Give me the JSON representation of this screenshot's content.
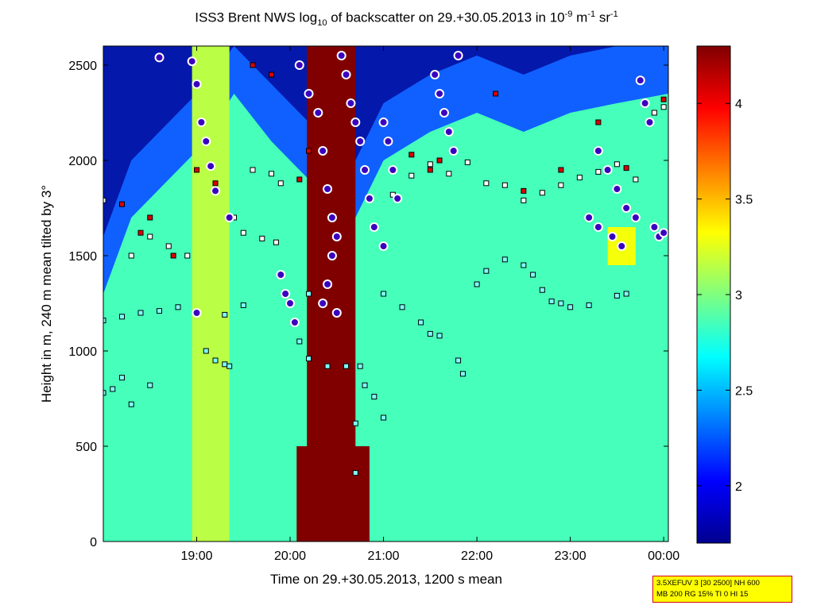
{
  "title": {
    "prefix": "ISS3 Brent NWS log",
    "sub": "10",
    "middle": " of backscatter on 29.+30.05.2013 in 10",
    "exp1": "-9",
    "unit_m": " m",
    "exp2": "-1",
    "unit_sr": " sr",
    "exp3": "-1"
  },
  "info_box": {
    "line1": "3.5XEFUV 3 [30 2500] NH 600",
    "line2": "MB 200 RG 15% TI 0 HI 15"
  },
  "chart_data": {
    "type": "heatmap",
    "xlabel": "Time on 29.+30.05.2013, 1200 s mean",
    "ylabel": "Height in m, 240 m mean tilted by 3°",
    "x_range_hours": [
      18.0,
      24.05
    ],
    "x_ticks": [
      {
        "hour": 19,
        "label": "19:00"
      },
      {
        "hour": 20,
        "label": "20:00"
      },
      {
        "hour": 21,
        "label": "21:00"
      },
      {
        "hour": 22,
        "label": "22:00"
      },
      {
        "hour": 23,
        "label": "23:00"
      },
      {
        "hour": 24,
        "label": "00:00"
      }
    ],
    "ylim": [
      0,
      2600
    ],
    "y_ticks": [
      0,
      500,
      1000,
      1500,
      2000,
      2500
    ],
    "colorbar": {
      "range": [
        1.7,
        4.3
      ],
      "ticks": [
        2,
        2.5,
        3,
        3.5,
        4
      ],
      "colormap": "jet"
    },
    "background_value": 2.85,
    "bands": [
      {
        "x0": 18.95,
        "x1": 19.35,
        "y0": 0,
        "y1": 2600,
        "value": 3.15
      },
      {
        "x0": 20.18,
        "x1": 20.7,
        "y0": 0,
        "y1": 2600,
        "value": 4.3
      },
      {
        "x0": 20.07,
        "x1": 20.85,
        "y0": 0,
        "y1": 500,
        "value": 4.3
      },
      {
        "x0": 23.4,
        "x1": 23.7,
        "y0": 1450,
        "y1": 1650,
        "value": 3.3
      }
    ],
    "top_layer": [
      {
        "x": 18.0,
        "top": 1300
      },
      {
        "x": 18.3,
        "top": 1700
      },
      {
        "x": 18.6,
        "top": 1850
      },
      {
        "x": 19.0,
        "top": 2050
      },
      {
        "x": 19.4,
        "top": 2350
      },
      {
        "x": 19.8,
        "top": 2100
      },
      {
        "x": 20.2,
        "top": 1900
      },
      {
        "x": 20.7,
        "top": 1700
      },
      {
        "x": 21.0,
        "top": 2000
      },
      {
        "x": 21.5,
        "top": 2150
      },
      {
        "x": 22.0,
        "top": 2250
      },
      {
        "x": 22.5,
        "top": 2150
      },
      {
        "x": 23.0,
        "top": 2250
      },
      {
        "x": 23.5,
        "top": 2300
      },
      {
        "x": 24.05,
        "top": 2350
      }
    ],
    "point_series": [
      {
        "name": "layer-low",
        "color": "#7fffff",
        "points": [
          [
            18.0,
            780
          ],
          [
            18.1,
            800
          ],
          [
            18.2,
            860
          ],
          [
            18.3,
            720
          ],
          [
            18.5,
            820
          ],
          [
            19.1,
            1000
          ],
          [
            19.2,
            950
          ],
          [
            19.3,
            930
          ],
          [
            19.35,
            920
          ],
          [
            20.1,
            1050
          ],
          [
            20.2,
            960
          ],
          [
            20.4,
            920
          ],
          [
            20.6,
            920
          ],
          [
            20.75,
            920
          ],
          [
            20.8,
            820
          ],
          [
            20.9,
            760
          ],
          [
            21.0,
            650
          ],
          [
            20.7,
            620
          ],
          [
            20.7,
            360
          ]
        ]
      },
      {
        "name": "layer-mid",
        "color": "#7fffff",
        "points": [
          [
            18.0,
            1160
          ],
          [
            18.2,
            1180
          ],
          [
            18.4,
            1200
          ],
          [
            18.6,
            1210
          ],
          [
            18.8,
            1230
          ],
          [
            19.0,
            1200
          ],
          [
            19.3,
            1190
          ],
          [
            19.5,
            1240
          ],
          [
            20.2,
            1300
          ],
          [
            21.0,
            1300
          ],
          [
            21.2,
            1230
          ],
          [
            21.4,
            1150
          ],
          [
            21.5,
            1090
          ],
          [
            21.6,
            1080
          ],
          [
            21.8,
            950
          ],
          [
            21.85,
            880
          ],
          [
            22.0,
            1350
          ],
          [
            22.1,
            1420
          ],
          [
            22.3,
            1480
          ],
          [
            22.5,
            1450
          ],
          [
            22.6,
            1400
          ],
          [
            22.7,
            1320
          ],
          [
            22.8,
            1260
          ],
          [
            22.9,
            1250
          ],
          [
            23.0,
            1230
          ],
          [
            23.2,
            1240
          ],
          [
            23.5,
            1290
          ],
          [
            23.6,
            1300
          ]
        ]
      },
      {
        "name": "layer-high",
        "color": "#ffffff",
        "points": [
          [
            18.0,
            1790
          ],
          [
            18.3,
            1500
          ],
          [
            18.5,
            1600
          ],
          [
            18.7,
            1550
          ],
          [
            18.9,
            1500
          ],
          [
            19.4,
            1700
          ],
          [
            19.5,
            1620
          ],
          [
            19.7,
            1590
          ],
          [
            19.85,
            1570
          ],
          [
            19.6,
            1950
          ],
          [
            19.8,
            1930
          ],
          [
            19.9,
            1880
          ],
          [
            21.1,
            1820
          ],
          [
            21.3,
            1920
          ],
          [
            21.5,
            1980
          ],
          [
            21.7,
            1930
          ],
          [
            21.9,
            1990
          ],
          [
            22.1,
            1880
          ],
          [
            22.3,
            1870
          ],
          [
            22.5,
            1790
          ],
          [
            22.7,
            1830
          ],
          [
            22.9,
            1870
          ],
          [
            23.1,
            1910
          ],
          [
            23.3,
            1940
          ],
          [
            23.5,
            1980
          ],
          [
            23.7,
            1900
          ],
          [
            23.9,
            2250
          ],
          [
            24.0,
            2280
          ]
        ]
      },
      {
        "name": "layer-red",
        "color": "#dd0000",
        "points": [
          [
            18.4,
            1620
          ],
          [
            18.5,
            1700
          ],
          [
            18.75,
            1500
          ],
          [
            19.0,
            1950
          ],
          [
            19.2,
            1880
          ],
          [
            19.6,
            2500
          ],
          [
            19.8,
            2450
          ],
          [
            20.1,
            1900
          ],
          [
            20.2,
            2050
          ],
          [
            21.0,
            2200
          ],
          [
            21.3,
            2030
          ],
          [
            21.5,
            1950
          ],
          [
            21.6,
            2000
          ],
          [
            22.2,
            2350
          ],
          [
            22.5,
            1840
          ],
          [
            22.9,
            1950
          ],
          [
            23.3,
            2200
          ],
          [
            23.6,
            1960
          ],
          [
            24.0,
            2320
          ],
          [
            18.2,
            1770
          ]
        ]
      },
      {
        "name": "circles",
        "color": "#dd0000",
        "points": [
          [
            18.6,
            2540
          ],
          [
            18.95,
            2520
          ],
          [
            19.0,
            2400
          ],
          [
            19.05,
            2200
          ],
          [
            19.1,
            2100
          ],
          [
            19.15,
            1970
          ],
          [
            19.2,
            1840
          ],
          [
            19.35,
            1700
          ],
          [
            20.1,
            2500
          ],
          [
            20.2,
            2350
          ],
          [
            20.3,
            2250
          ],
          [
            20.35,
            2050
          ],
          [
            20.4,
            1850
          ],
          [
            20.45,
            1700
          ],
          [
            20.5,
            1600
          ],
          [
            20.45,
            1500
          ],
          [
            20.4,
            1350
          ],
          [
            20.35,
            1250
          ],
          [
            20.55,
            2550
          ],
          [
            20.6,
            2450
          ],
          [
            20.65,
            2300
          ],
          [
            20.7,
            2200
          ],
          [
            20.75,
            2100
          ],
          [
            20.8,
            1950
          ],
          [
            20.85,
            1800
          ],
          [
            20.9,
            1650
          ],
          [
            20.5,
            1200
          ],
          [
            19.0,
            1200
          ],
          [
            19.9,
            1400
          ],
          [
            19.95,
            1300
          ],
          [
            20.0,
            1250
          ],
          [
            20.05,
            1150
          ],
          [
            21.0,
            2200
          ],
          [
            21.05,
            2100
          ],
          [
            21.1,
            1950
          ],
          [
            21.15,
            1800
          ],
          [
            21.0,
            1550
          ],
          [
            21.55,
            2450
          ],
          [
            21.6,
            2350
          ],
          [
            21.65,
            2250
          ],
          [
            21.7,
            2150
          ],
          [
            21.75,
            2050
          ],
          [
            21.8,
            2550
          ],
          [
            23.3,
            2050
          ],
          [
            23.4,
            1950
          ],
          [
            23.5,
            1850
          ],
          [
            23.6,
            1750
          ],
          [
            23.7,
            1700
          ],
          [
            23.75,
            2420
          ],
          [
            23.8,
            2300
          ],
          [
            23.85,
            2200
          ],
          [
            23.9,
            1650
          ],
          [
            23.95,
            1600
          ],
          [
            24.0,
            1620
          ],
          [
            23.2,
            1700
          ],
          [
            23.3,
            1650
          ],
          [
            23.45,
            1600
          ],
          [
            23.55,
            1550
          ]
        ]
      }
    ]
  }
}
